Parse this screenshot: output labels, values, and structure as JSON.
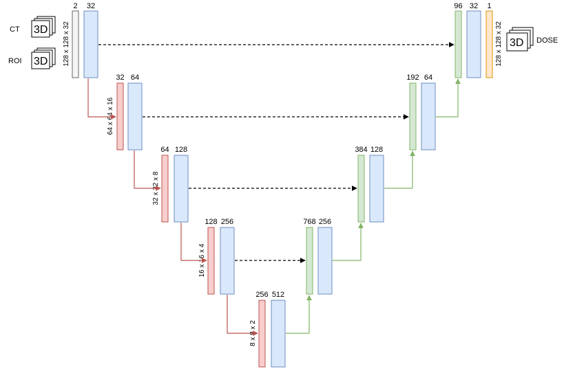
{
  "colors": {
    "input_fill": "#f5f5f5",
    "input_stroke": "#666666",
    "conv_fill": "#dae8fc",
    "conv_stroke": "#6c8ebf",
    "down_fill": "#f8cecc",
    "down_stroke": "#b85450",
    "up_fill": "#d5e8d4",
    "up_stroke": "#82b366",
    "out_fill": "#ffe6cc",
    "out_stroke": "#d79b00",
    "skip": "#000000",
    "down_arrow": "#b85450",
    "up_arrow": "#82b366"
  },
  "inputs": {
    "ct_label": "CT",
    "roi_label": "ROI",
    "icon_text": "3D"
  },
  "output": {
    "dose_label": "DOSE",
    "icon_text": "3D"
  },
  "encoder": [
    {
      "level": 1,
      "in_channels": "2",
      "out_channels": "32",
      "size": "128 x 128 x 32"
    },
    {
      "level": 2,
      "in_channels": "32",
      "out_channels": "64",
      "size": "64 x 64 x 16"
    },
    {
      "level": 3,
      "in_channels": "64",
      "out_channels": "128",
      "size": "32 x 32 x 8"
    },
    {
      "level": 4,
      "in_channels": "128",
      "out_channels": "256",
      "size": "16 x 16 x 4"
    },
    {
      "level": 5,
      "in_channels": "256",
      "out_channels": "512",
      "size": "8 x 8 x 2"
    }
  ],
  "decoder": [
    {
      "level": 4,
      "in_channels": "768",
      "out_channels": "256"
    },
    {
      "level": 3,
      "in_channels": "384",
      "out_channels": "128"
    },
    {
      "level": 2,
      "in_channels": "192",
      "out_channels": "64"
    },
    {
      "level": 1,
      "in_channels": "96",
      "out_channels": "32",
      "final_channels": "1",
      "size": "128 x 128 x 32"
    }
  ]
}
